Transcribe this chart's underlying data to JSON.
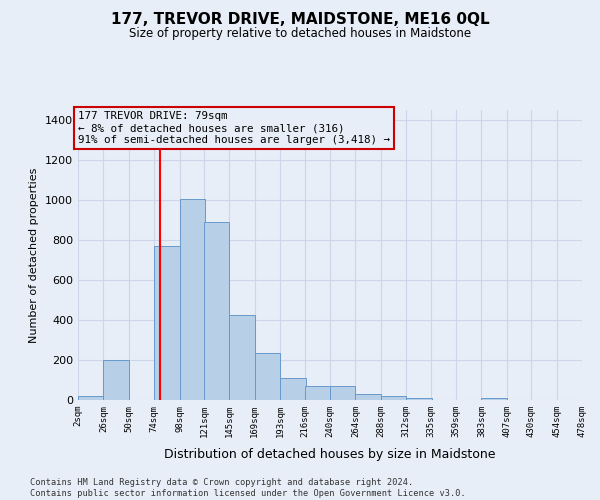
{
  "title": "177, TREVOR DRIVE, MAIDSTONE, ME16 0QL",
  "subtitle": "Size of property relative to detached houses in Maidstone",
  "xlabel": "Distribution of detached houses by size in Maidstone",
  "ylabel": "Number of detached properties",
  "bar_left_edges": [
    2,
    26,
    50,
    74,
    98,
    121,
    145,
    169,
    193,
    216,
    240,
    264,
    288,
    312,
    335,
    359,
    383,
    407,
    430,
    454
  ],
  "bar_heights": [
    22,
    200,
    0,
    770,
    1005,
    890,
    425,
    235,
    110,
    70,
    70,
    28,
    22,
    10,
    0,
    0,
    10,
    0,
    0,
    0
  ],
  "bin_width": 24,
  "x_tick_labels": [
    "2sqm",
    "26sqm",
    "50sqm",
    "74sqm",
    "98sqm",
    "121sqm",
    "145sqm",
    "169sqm",
    "193sqm",
    "216sqm",
    "240sqm",
    "264sqm",
    "288sqm",
    "312sqm",
    "335sqm",
    "359sqm",
    "383sqm",
    "407sqm",
    "430sqm",
    "454sqm",
    "478sqm"
  ],
  "bar_color": "#b8cfe8",
  "bar_edge_color": "#6699cc",
  "property_line_x": 79,
  "property_line_color": "red",
  "ylim": [
    0,
    1450
  ],
  "yticks": [
    0,
    200,
    400,
    600,
    800,
    1000,
    1200,
    1400
  ],
  "annotation_line1": "177 TREVOR DRIVE: 79sqm",
  "annotation_line2": "← 8% of detached houses are smaller (316)",
  "annotation_line3": "91% of semi-detached houses are larger (3,418) →",
  "annotation_box_edgecolor": "#cc0000",
  "footer_line1": "Contains HM Land Registry data © Crown copyright and database right 2024.",
  "footer_line2": "Contains public sector information licensed under the Open Government Licence v3.0.",
  "background_color": "#e8eef8",
  "grid_color": "#ccd6e8"
}
